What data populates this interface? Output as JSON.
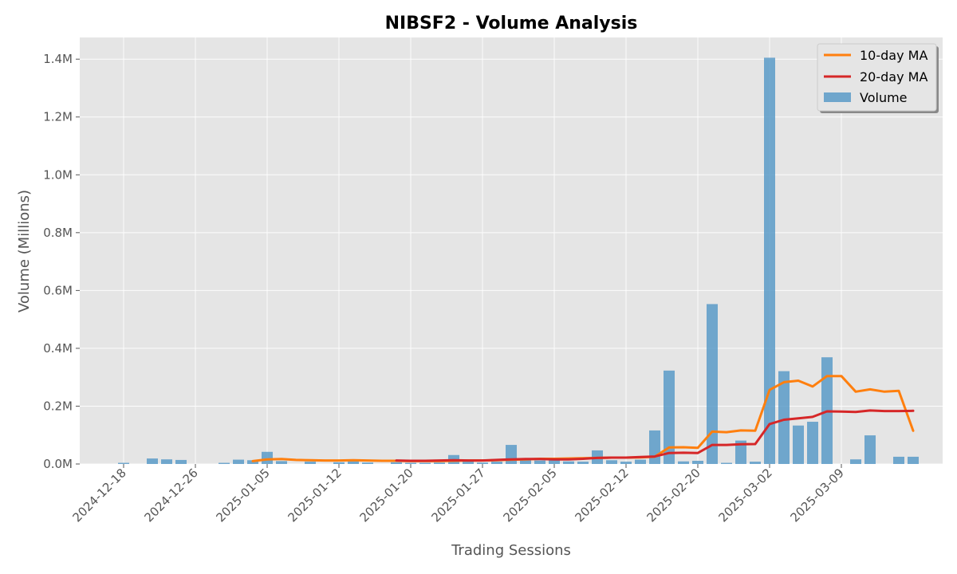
{
  "chart_data": {
    "type": "bar",
    "title": "NIBSF2 - Volume Analysis",
    "xlabel": "Trading Sessions",
    "ylabel": "Volume (Millions)",
    "ylim": [
      0,
      1.475
    ],
    "y_ticks": [
      0.0,
      0.2,
      0.4,
      0.6,
      0.8,
      1.0,
      1.2,
      1.4
    ],
    "y_tick_labels": [
      "0.0M",
      "0.2M",
      "0.4M",
      "0.6M",
      "0.8M",
      "1.0M",
      "1.2M",
      "1.4M"
    ],
    "x_tick_labels": [
      "2024-12-18",
      "2024-12-26",
      "2025-01-05",
      "2025-01-12",
      "2025-01-20",
      "2025-01-27",
      "2025-02-05",
      "2025-02-12",
      "2025-02-20",
      "2025-03-02",
      "2025-03-09"
    ],
    "x_tick_session_index": [
      0,
      5,
      10,
      15,
      20,
      25,
      30,
      35,
      40,
      45,
      50
    ],
    "grid": true,
    "legend_position": "top-right",
    "series": [
      {
        "name": "Volume",
        "kind": "bar",
        "color": "#5b9bc8",
        "values": [
          0.004,
          0,
          0.019,
          0.016,
          0.014,
          0,
          0,
          0.004,
          0.015,
          0.013,
          0.042,
          0.01,
          0,
          0.008,
          0,
          0.006,
          0.009,
          0.005,
          0,
          0.006,
          0.004,
          0.004,
          0.005,
          0.031,
          0.01,
          0.005,
          0.008,
          0.066,
          0.015,
          0.012,
          0.013,
          0.009,
          0.008,
          0.047,
          0.013,
          0.008,
          0.015,
          0.116,
          0.323,
          0.009,
          0.011,
          0.553,
          0.004,
          0.081,
          0.008,
          1.405,
          0.321,
          0.133,
          0.146,
          0.369,
          0,
          0.016,
          0.099,
          0,
          0.025,
          0.025
        ]
      },
      {
        "name": "10-day MA",
        "kind": "line",
        "color": "#ff7f0e",
        "start_index": 9,
        "values": [
          0.01,
          0.016,
          0.017,
          0.014,
          0.013,
          0.012,
          0.012,
          0.013,
          0.012,
          0.011,
          0.011,
          0.01,
          0.01,
          0.01,
          0.011,
          0.012,
          0.012,
          0.013,
          0.015,
          0.016,
          0.018,
          0.018,
          0.019,
          0.02,
          0.021,
          0.022,
          0.022,
          0.023,
          0.025,
          0.057,
          0.058,
          0.056,
          0.112,
          0.11,
          0.116,
          0.115,
          0.256,
          0.283,
          0.288,
          0.268,
          0.304,
          0.304,
          0.25,
          0.258,
          0.25,
          0.253,
          0.115
        ]
      },
      {
        "name": "20-day MA",
        "kind": "line",
        "color": "#d62728",
        "start_index": 19,
        "values": [
          0.012,
          0.011,
          0.011,
          0.012,
          0.013,
          0.012,
          0.012,
          0.014,
          0.016,
          0.017,
          0.017,
          0.016,
          0.016,
          0.018,
          0.021,
          0.022,
          0.022,
          0.024,
          0.026,
          0.038,
          0.039,
          0.038,
          0.066,
          0.066,
          0.068,
          0.069,
          0.138,
          0.153,
          0.158,
          0.163,
          0.182,
          0.181,
          0.18,
          0.185,
          0.183,
          0.183,
          0.184
        ]
      }
    ]
  }
}
